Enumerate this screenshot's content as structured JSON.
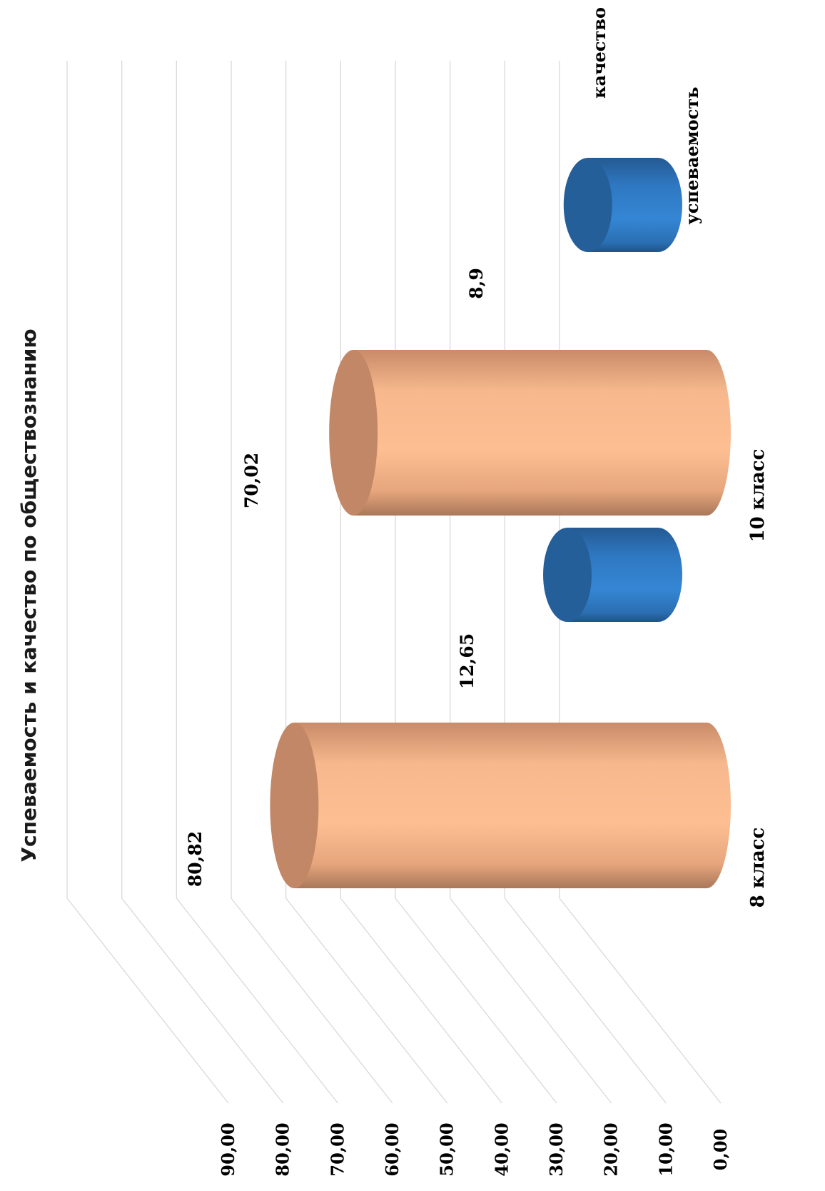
{
  "chart_data": {
    "type": "bar",
    "title": "Успеваемость и качество по обществознанию",
    "categories": [
      "8 класс",
      "10 класс"
    ],
    "series": [
      {
        "name": "успеваемость",
        "values": [
          80.82,
          70.02
        ],
        "value_labels": [
          "80,82",
          "70,02"
        ],
        "color": "#f9b98a"
      },
      {
        "name": "качество",
        "values": [
          12.65,
          8.9
        ],
        "value_labels": [
          "12,65",
          "8,9"
        ],
        "color": "#2f7ec8"
      }
    ],
    "ylim": [
      0,
      90
    ],
    "yticks": [
      0,
      10,
      20,
      30,
      40,
      50,
      60,
      70,
      80,
      90
    ],
    "ytick_labels": [
      "0,00",
      "10,00",
      "20,00",
      "30,00",
      "40,00",
      "50,00",
      "60,00",
      "70,00",
      "80,00",
      "90,00"
    ],
    "grid": true,
    "style": "3d-cylinder",
    "orientation": "rotated-90-cw"
  }
}
